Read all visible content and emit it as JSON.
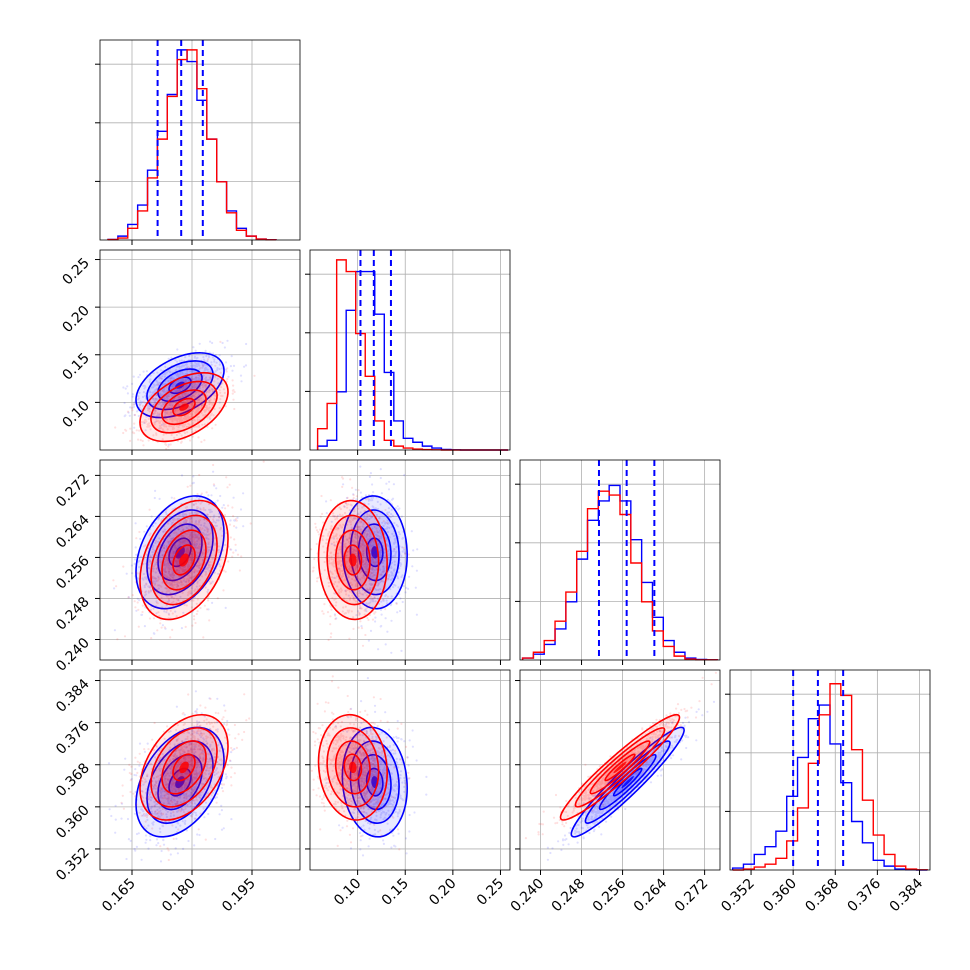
{
  "chart_data": {
    "type": "corner",
    "colors": {
      "series_a": "#0000ff",
      "series_b": "#ff0000",
      "grid": "#b0b0b0",
      "frame": "#000000"
    },
    "series": [
      {
        "color": "blue",
        "quantiles": [
          [
            0.1714,
            0.1773,
            0.1827
          ],
          [
            0.103,
            0.117,
            0.135
          ],
          [
            0.2514,
            0.2568,
            0.2622
          ],
          [
            0.36,
            0.3647,
            0.3695
          ]
        ],
        "means": [
          0.177,
          0.118,
          0.257,
          0.3647
        ],
        "sigmas": [
          0.0055,
          0.017,
          0.0055,
          0.0052
        ]
      },
      {
        "color": "red",
        "means": [
          0.178,
          0.095,
          0.2555,
          0.3675
        ],
        "sigmas": [
          0.0055,
          0.018,
          0.0058,
          0.005
        ]
      }
    ],
    "hist_a": [
      [
        0.003,
        0.02,
        0.08,
        0.18,
        0.36,
        0.56,
        0.75,
        0.98,
        0.92,
        0.72,
        0.52,
        0.3,
        0.15,
        0.06,
        0.02,
        0.005,
        0.001
      ],
      [
        0.02,
        0.05,
        0.3,
        0.72,
        0.92,
        0.92,
        0.7,
        0.4,
        0.15,
        0.06,
        0.04,
        0.02,
        0.01,
        0.003,
        0.001,
        0,
        0,
        0,
        0,
        0
      ],
      [
        0.01,
        0.03,
        0.08,
        0.16,
        0.3,
        0.52,
        0.72,
        0.82,
        0.9,
        0.82,
        0.62,
        0.4,
        0.22,
        0.1,
        0.04,
        0.01,
        0.003,
        0.001
      ],
      [
        0.01,
        0.03,
        0.08,
        0.12,
        0.2,
        0.38,
        0.58,
        0.78,
        0.85,
        0.65,
        0.45,
        0.25,
        0.14,
        0.05,
        0.02,
        0.005,
        0.001,
        0
      ]
    ],
    "hist_b": [
      [
        0.002,
        0.01,
        0.06,
        0.15,
        0.32,
        0.52,
        0.74,
        0.93,
        0.98,
        0.78,
        0.52,
        0.3,
        0.14,
        0.05,
        0.02,
        0.005,
        0.001
      ],
      [
        0.11,
        0.24,
        0.98,
        0.92,
        0.6,
        0.38,
        0.15,
        0.05,
        0.02,
        0.01,
        0.005,
        0.002,
        0.001,
        0,
        0,
        0,
        0,
        0,
        0,
        0
      ],
      [
        0.01,
        0.04,
        0.1,
        0.2,
        0.35,
        0.56,
        0.78,
        0.87,
        0.85,
        0.75,
        0.5,
        0.3,
        0.15,
        0.07,
        0.02,
        0.005,
        0.001,
        0.001
      ],
      [
        0,
        0.005,
        0.015,
        0.03,
        0.06,
        0.15,
        0.32,
        0.55,
        0.8,
        0.96,
        0.9,
        0.62,
        0.36,
        0.18,
        0.08,
        0.02,
        0.005,
        0.001
      ]
    ],
    "correlations": [
      [
        null,
        null,
        null,
        null
      ],
      [
        0.45,
        null,
        null,
        null
      ],
      [
        0.35,
        -0.05,
        null,
        null
      ],
      [
        0.4,
        -0.1,
        0.95,
        null
      ]
    ],
    "params": [
      {
        "range": [
          0.157,
          0.207
        ],
        "ticks": [
          0.165,
          0.18,
          0.195
        ],
        "tick_labels": [
          "0.165",
          "0.180",
          "0.195"
        ]
      },
      {
        "range": [
          0.05,
          0.26
        ],
        "ticks": [
          0.1,
          0.15,
          0.2,
          0.25
        ],
        "tick_labels": [
          "0.10",
          "0.15",
          "0.20",
          "0.25"
        ]
      },
      {
        "range": [
          0.236,
          0.275
        ],
        "ticks": [
          0.24,
          0.248,
          0.256,
          0.264,
          0.272
        ],
        "tick_labels": [
          "0.240",
          "0.248",
          "0.256",
          "0.264",
          "0.272"
        ]
      },
      {
        "range": [
          0.348,
          0.386
        ],
        "ticks": [
          0.352,
          0.36,
          0.368,
          0.376,
          0.384
        ],
        "tick_labels": [
          "0.352",
          "0.360",
          "0.368",
          "0.376",
          "0.384"
        ]
      }
    ],
    "hist_y_ticks": 3,
    "grid": true
  }
}
